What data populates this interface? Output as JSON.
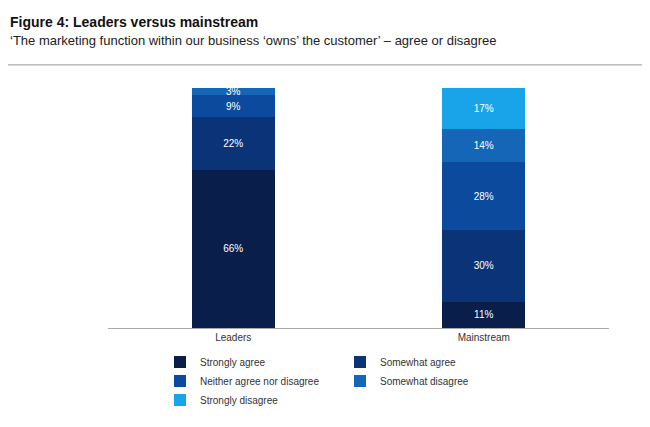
{
  "chart_data": {
    "type": "bar",
    "title": "Figure 4: Leaders versus mainstream",
    "subtitle": "‘The marketing function within our business ‘owns’ the customer’ – agree or disagree",
    "categories": [
      "Leaders",
      "Mainstream"
    ],
    "series": [
      {
        "name": "Strongly agree",
        "color": "#0a1e4b",
        "values": [
          66,
          11
        ],
        "value_labels": [
          "66%",
          "11%"
        ]
      },
      {
        "name": "Somewhat agree",
        "color": "#0b3478",
        "values": [
          22,
          30
        ],
        "value_labels": [
          "22%",
          "30%"
        ]
      },
      {
        "name": "Neither agree nor disagree",
        "color": "#0b4a9c",
        "values": [
          9,
          28
        ],
        "value_labels": [
          "9%",
          "28%"
        ]
      },
      {
        "name": "Somewhat disagree",
        "color": "#1566b6",
        "values": [
          3,
          14
        ],
        "value_labels": [
          "3%",
          "14%"
        ]
      },
      {
        "name": "Strongly disagree",
        "color": "#19a4ea",
        "values": [
          null,
          17
        ],
        "value_labels": [
          null,
          "17%"
        ]
      }
    ],
    "ylim": [
      0,
      100
    ],
    "stacked": true,
    "data_labels": true,
    "grid": false,
    "legend": "bottom",
    "tick_labels": "x"
  }
}
